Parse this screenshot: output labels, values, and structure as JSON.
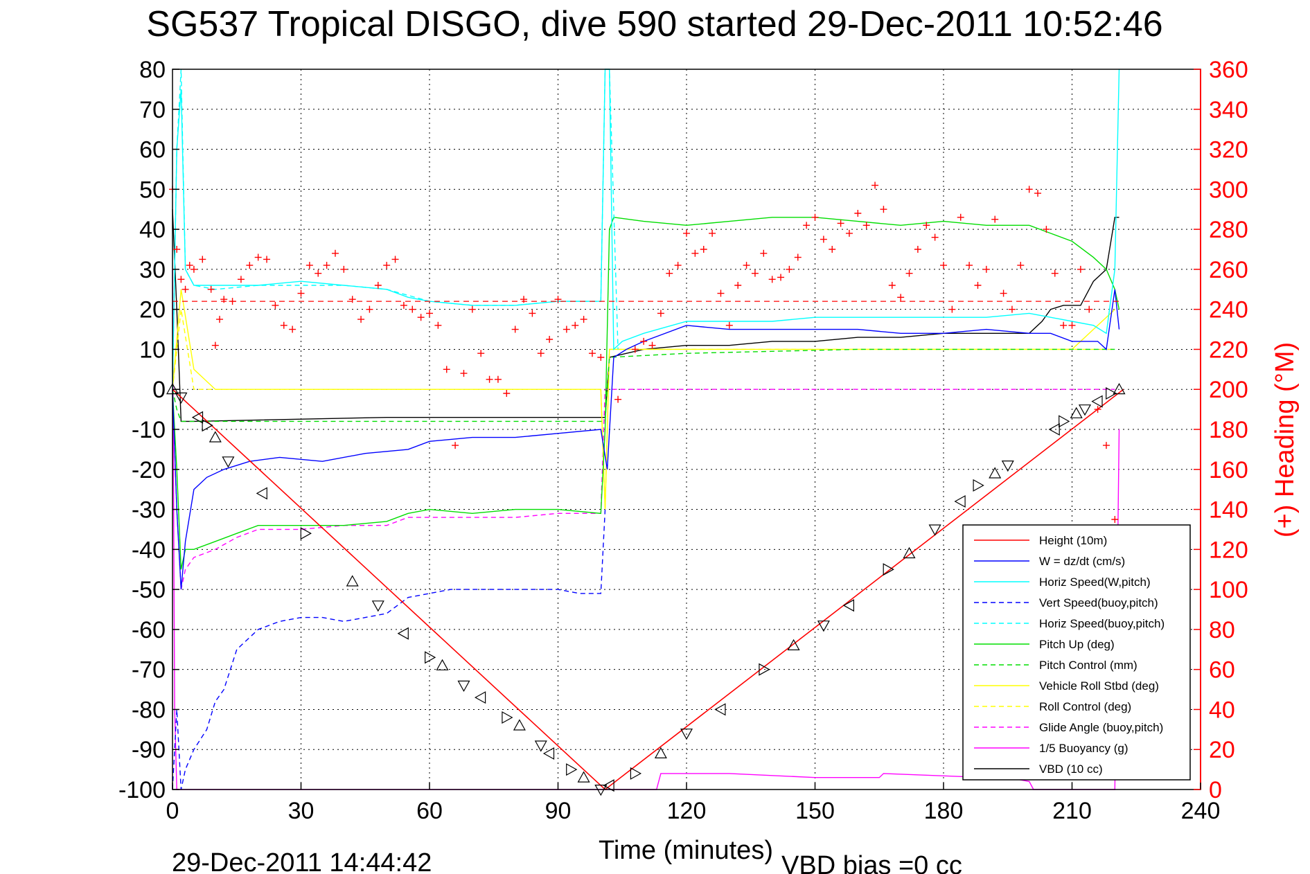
{
  "chart_data": {
    "type": "line",
    "title": "SG537 Tropical DISGO, dive 590 started 29-Dec-2011 10:52:46",
    "xlabel": "Time (minutes)",
    "ylabel_right": "(+) Heading (°M)",
    "xlim": [
      0,
      240
    ],
    "ylim_left": [
      -100,
      80
    ],
    "ylim_right": [
      0,
      360
    ],
    "x_ticks": [
      "0",
      "30",
      "60",
      "90",
      "120",
      "150",
      "180",
      "210",
      "240"
    ],
    "y_ticks_left": [
      "80",
      "70",
      "60",
      "50",
      "40",
      "30",
      "20",
      "10",
      "0",
      "-10",
      "-20",
      "-30",
      "-40",
      "-50",
      "-60",
      "-70",
      "-80",
      "-90",
      "-100"
    ],
    "y_ticks_right": [
      "360",
      "340",
      "320",
      "300",
      "280",
      "260",
      "240",
      "220",
      "200",
      "180",
      "160",
      "140",
      "120",
      "100",
      "80",
      "60",
      "40",
      "20",
      "0"
    ],
    "grid": true,
    "legend_position": "bottom-right",
    "footer_left": "29-Dec-2011 14:44:42",
    "footer_right": "VBD bias =0 cc",
    "series": [
      {
        "name": "Height (10m)",
        "color": "#ff0000",
        "style": "solid",
        "x": [
          0,
          101,
          222
        ],
        "y": [
          0,
          -100,
          0
        ]
      },
      {
        "name": "W = dz/dt (cm/s)",
        "color": "#0000ff",
        "style": "solid",
        "x": [
          0,
          1,
          2,
          3,
          5,
          8,
          12,
          18,
          25,
          35,
          45,
          55,
          60,
          70,
          80,
          90,
          100,
          101.5,
          103,
          106,
          110,
          120,
          130,
          140,
          150,
          160,
          170,
          180,
          190,
          200,
          205,
          210,
          213,
          216,
          218,
          220,
          221
        ],
        "y": [
          0,
          -30,
          -50,
          -38,
          -25,
          -22,
          -20,
          -18,
          -17,
          -18,
          -16,
          -15,
          -13,
          -12,
          -12,
          -11,
          -10,
          -20,
          8,
          10,
          12,
          16,
          15,
          15,
          15,
          15,
          14,
          14,
          15,
          14,
          14,
          12,
          12,
          12,
          10,
          25,
          15
        ]
      },
      {
        "name": "Horiz Speed(W,pitch)",
        "color": "#00ffff",
        "style": "solid",
        "x": [
          0,
          1,
          2,
          3,
          5,
          10,
          20,
          30,
          40,
          50,
          55,
          60,
          70,
          80,
          90,
          100,
          101,
          102,
          103,
          105,
          110,
          120,
          130,
          140,
          150,
          160,
          170,
          180,
          190,
          200,
          205,
          210,
          215,
          218,
          220,
          221
        ],
        "y": [
          0,
          60,
          75,
          30,
          26,
          26,
          26,
          27,
          26,
          25,
          23,
          22,
          21,
          21,
          22,
          22,
          80,
          80,
          10,
          12,
          14,
          17,
          17,
          17,
          18,
          18,
          18,
          18,
          18,
          19,
          18,
          17,
          16,
          14,
          30,
          80
        ]
      },
      {
        "name": "Vert Speed(buoy,pitch)",
        "color": "#0000ff",
        "style": "dashed",
        "x": [
          0,
          1,
          2,
          3,
          5,
          8,
          10,
          12,
          15,
          20,
          25,
          30,
          35,
          40,
          45,
          50,
          55,
          60,
          65,
          70,
          75,
          80,
          85,
          90,
          95,
          100,
          101
        ],
        "y": [
          -100,
          -80,
          -100,
          -95,
          -90,
          -85,
          -78,
          -75,
          -65,
          -60,
          -58,
          -57,
          -57,
          -58,
          -57,
          -56,
          -52,
          -51,
          -50,
          -50,
          -50,
          -50,
          -50,
          -50,
          -51,
          -51,
          -30
        ]
      },
      {
        "name": "Horiz Speed(buoy,pitch)",
        "color": "#00ffff",
        "style": "dashed",
        "x": [
          0,
          1,
          2,
          3,
          5,
          10,
          20,
          30,
          40,
          50,
          60,
          70,
          80,
          90,
          100,
          101,
          102,
          104
        ],
        "y": [
          0,
          60,
          80,
          30,
          26,
          25,
          26,
          26,
          26,
          25,
          22,
          21,
          21,
          22,
          22,
          80,
          80,
          10
        ]
      },
      {
        "name": "Pitch Up (deg)",
        "color": "#00dd00",
        "style": "solid",
        "x": [
          0,
          1,
          2,
          3,
          5,
          10,
          15,
          20,
          30,
          40,
          50,
          55,
          60,
          70,
          80,
          90,
          100,
          101,
          102,
          103,
          110,
          120,
          130,
          140,
          150,
          160,
          170,
          180,
          190,
          200,
          205,
          210,
          215,
          218,
          220,
          221
        ],
        "y": [
          0,
          -20,
          -45,
          -40,
          -40,
          -38,
          -36,
          -34,
          -34,
          -34,
          -33,
          -31,
          -30,
          -31,
          -30,
          -30,
          -31,
          -10,
          40,
          43,
          42,
          41,
          42,
          43,
          43,
          42,
          41,
          42,
          41,
          41,
          39,
          37,
          33,
          30,
          25,
          20
        ]
      },
      {
        "name": "Pitch Control (mm)",
        "color": "#00dd00",
        "style": "dashed",
        "x": [
          0,
          1,
          2,
          5,
          20,
          50,
          80,
          100,
          101,
          102,
          120,
          160,
          200,
          215,
          220
        ],
        "y": [
          0,
          -5,
          -8,
          -8,
          -8,
          -8,
          -8,
          -8,
          -8,
          8,
          9,
          10,
          10,
          10,
          10
        ]
      },
      {
        "name": "Vehicle Roll Stbd (deg)",
        "color": "#ffff00",
        "style": "solid",
        "x": [
          0,
          2,
          5,
          10,
          20,
          30,
          40,
          50,
          60,
          70,
          80,
          90,
          100,
          101,
          102,
          110,
          120,
          140,
          160,
          180,
          200,
          210,
          220
        ],
        "y": [
          0,
          25,
          5,
          0,
          0,
          0,
          0,
          0,
          0,
          0,
          0,
          0,
          0,
          -30,
          10,
          10,
          10,
          10,
          10,
          10,
          10,
          10,
          20
        ]
      },
      {
        "name": "Roll Control (deg)",
        "color": "#ffff00",
        "style": "dashed",
        "x": [
          0,
          2,
          5,
          10,
          50,
          100,
          101,
          102,
          150,
          200,
          220
        ],
        "y": [
          0,
          20,
          0,
          0,
          0,
          0,
          -30,
          10,
          10,
          10,
          10
        ]
      },
      {
        "name": "Glide Angle (buoy,pitch)",
        "color": "#ff00ff",
        "style": "dashed",
        "x": [
          0,
          1,
          2,
          3,
          5,
          10,
          15,
          20,
          30,
          40,
          50,
          55,
          60,
          70,
          80,
          90,
          100,
          101,
          102,
          220
        ],
        "y": [
          0,
          -30,
          -50,
          -45,
          -42,
          -40,
          -37,
          -35,
          -35,
          -34,
          -34,
          -32,
          -32,
          -32,
          -32,
          -31,
          -31,
          0,
          0,
          0
        ]
      },
      {
        "name": "1/5 Buoyancy (g)",
        "color": "#ff00ff",
        "style": "solid",
        "x": [
          0,
          0.5,
          1,
          2,
          113,
          114,
          130,
          150,
          165,
          166,
          190,
          195,
          200,
          201,
          220,
          221
        ],
        "y": [
          30,
          -80,
          -100,
          -100,
          -100,
          -96,
          -96,
          -97,
          -97,
          -96,
          -97,
          -97,
          -98,
          -100,
          -100,
          -10
        ]
      },
      {
        "name": "VBD (10 cc)",
        "color": "#000000",
        "style": "solid",
        "x": [
          0,
          1,
          2,
          5,
          50,
          100,
          101,
          102,
          106,
          110,
          120,
          130,
          140,
          150,
          160,
          170,
          180,
          190,
          195,
          200,
          203,
          205,
          208,
          212,
          215,
          218,
          220,
          221
        ],
        "y": [
          45,
          20,
          -8,
          -8,
          -7,
          -7,
          -7,
          8,
          9,
          10,
          11,
          11,
          12,
          12,
          13,
          13,
          14,
          14,
          14,
          14,
          17,
          20,
          21,
          21,
          27,
          30,
          43,
          43
        ]
      }
    ],
    "heading_points": {
      "name": "Heading (+)",
      "color": "#ff0000",
      "marker": "+",
      "axis": "right",
      "x": [
        0,
        1,
        2,
        3,
        4,
        5,
        7,
        9,
        10,
        11,
        12,
        14,
        16,
        18,
        20,
        22,
        24,
        26,
        28,
        30,
        32,
        34,
        36,
        38,
        40,
        42,
        44,
        46,
        48,
        50,
        52,
        54,
        56,
        58,
        60,
        62,
        64,
        66,
        68,
        70,
        72,
        74,
        76,
        78,
        80,
        82,
        84,
        86,
        88,
        90,
        92,
        94,
        96,
        98,
        100,
        104,
        108,
        110,
        112,
        114,
        116,
        118,
        120,
        122,
        124,
        126,
        128,
        130,
        132,
        134,
        136,
        138,
        140,
        142,
        144,
        146,
        148,
        150,
        152,
        154,
        156,
        158,
        160,
        162,
        164,
        166,
        168,
        170,
        172,
        174,
        176,
        178,
        180,
        182,
        184,
        186,
        188,
        190,
        192,
        194,
        196,
        198,
        200,
        202,
        204,
        206,
        208,
        210,
        212,
        214,
        216,
        218,
        220
      ],
      "y": [
        300,
        270,
        255,
        250,
        262,
        260,
        265,
        250,
        222,
        235,
        245,
        244,
        255,
        262,
        266,
        265,
        242,
        232,
        230,
        248,
        262,
        258,
        262,
        268,
        260,
        245,
        235,
        240,
        252,
        262,
        265,
        242,
        240,
        236,
        238,
        232,
        210,
        172,
        208,
        240,
        218,
        205,
        205,
        198,
        230,
        245,
        238,
        218,
        225,
        245,
        230,
        232,
        235,
        218,
        216,
        195,
        220,
        224,
        222,
        238,
        258,
        262,
        278,
        268,
        270,
        278,
        248,
        232,
        252,
        262,
        258,
        268,
        255,
        256,
        260,
        266,
        282,
        286,
        275,
        270,
        283,
        278,
        288,
        282,
        302,
        290,
        252,
        246,
        258,
        270,
        282,
        276,
        262,
        240,
        286,
        262,
        252,
        260,
        285,
        248,
        240,
        262,
        300,
        298,
        280,
        258,
        232,
        232,
        260,
        240,
        190,
        172,
        135
      ]
    },
    "markers": {
      "types": [
        "triangle-up",
        "triangle-down",
        "triangle-left",
        "triangle-right"
      ],
      "x": [
        0,
        2,
        6,
        8,
        10,
        13,
        21,
        31,
        42,
        48,
        54,
        60,
        63,
        68,
        72,
        78,
        81,
        86,
        88,
        93,
        96,
        100,
        102,
        108,
        114,
        120,
        128,
        138,
        145,
        152,
        158,
        167,
        172,
        178,
        184,
        188,
        192,
        195,
        206,
        208,
        211,
        213,
        216,
        219,
        221
      ],
      "y": [
        0,
        -2,
        -7,
        -9,
        -12,
        -18,
        -26,
        -36,
        -48,
        -54,
        -61,
        -67,
        -69,
        -74,
        -77,
        -82,
        -84,
        -89,
        -91,
        -95,
        -97,
        -100,
        -99,
        -96,
        -91,
        -86,
        -80,
        -70,
        -64,
        -59,
        -54,
        -45,
        -41,
        -35,
        -28,
        -24,
        -21,
        -19,
        -10,
        -8,
        -6,
        -5,
        -3,
        -1,
        0
      ]
    }
  }
}
